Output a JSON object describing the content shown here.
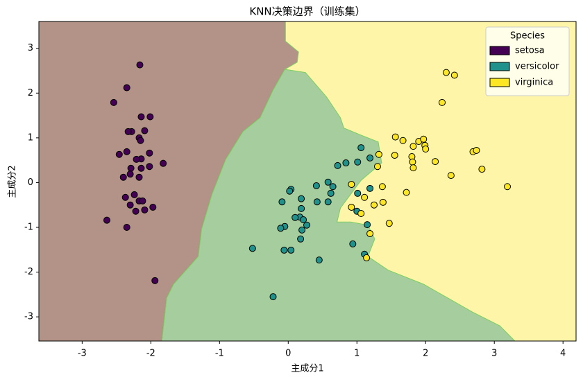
{
  "chart_data": {
    "type": "scatter",
    "title": "KNN决策边界（训练集）",
    "x_label": "主成分1",
    "y_label": "主成分2",
    "legend_title": "Species",
    "legend_position": "upper right",
    "xlim": [
      -3.63,
      4.19
    ],
    "ylim": [
      -3.54,
      3.6
    ],
    "xticks": [
      -3,
      -2,
      -1,
      0,
      1,
      2,
      3,
      4
    ],
    "yticks": [
      -3,
      -2,
      -1,
      0,
      1,
      2,
      3
    ],
    "series": [
      {
        "name": "setosa",
        "color": "#440154",
        "x": [
          -2.16,
          -2.35,
          -2.54,
          -2.14,
          -2.01,
          -2.28,
          -2.33,
          -2.09,
          -2.17,
          -2.15,
          -2.46,
          -2.35,
          -2.02,
          -2.14,
          -2.21,
          -1.82,
          -2.29,
          -2.14,
          -2.02,
          -2.3,
          -2.4,
          -2.17,
          -2.24,
          -2.37,
          -2.17,
          -2.12,
          -2.3,
          -2.22,
          -2.09,
          -1.97,
          -2.64,
          -2.35,
          -1.94
        ],
        "y": [
          2.63,
          2.12,
          1.79,
          1.47,
          1.47,
          1.14,
          1.14,
          1.16,
          1.0,
          0.94,
          0.63,
          0.69,
          0.66,
          0.53,
          0.52,
          0.43,
          0.32,
          0.32,
          0.36,
          0.19,
          0.12,
          0.12,
          -0.27,
          -0.33,
          -0.41,
          -0.41,
          -0.5,
          -0.64,
          -0.61,
          -0.55,
          -0.84,
          -1.0,
          -2.19
        ]
      },
      {
        "name": "versicolor",
        "color": "#21918c",
        "x": [
          1.06,
          1.01,
          1.19,
          0.84,
          0.72,
          0.58,
          0.04,
          0.02,
          0.41,
          0.65,
          0.62,
          0.19,
          -0.09,
          0.42,
          0.58,
          1.01,
          1.19,
          0.19,
          0.17,
          0.1,
          0.22,
          0.27,
          -0.05,
          -0.11,
          0.2,
          1.0,
          1.15,
          0.18,
          0.94,
          -0.52,
          -0.06,
          0.04,
          0.45,
          1.11,
          -0.22
        ],
        "y": [
          0.78,
          0.46,
          0.55,
          0.44,
          0.38,
          0.01,
          -0.15,
          -0.19,
          -0.07,
          -0.09,
          -0.24,
          -0.36,
          -0.43,
          -0.43,
          -0.43,
          -0.24,
          -0.13,
          -0.58,
          -0.77,
          -0.78,
          -0.83,
          -0.95,
          -0.98,
          -1.02,
          -1.06,
          -0.64,
          -0.94,
          -1.26,
          -1.37,
          -1.47,
          -1.51,
          -1.51,
          -1.73,
          -1.6,
          -2.55
        ]
      },
      {
        "name": "virginica",
        "color": "#fde725",
        "x": [
          2.3,
          2.42,
          2.24,
          1.56,
          1.67,
          1.9,
          1.97,
          1.82,
          1.99,
          2.0,
          1.32,
          1.55,
          1.8,
          1.81,
          1.82,
          2.14,
          1.3,
          2.69,
          2.74,
          2.82,
          2.37,
          3.19,
          0.92,
          1.37,
          1.72,
          1.11,
          1.38,
          1.25,
          0.92,
          1.06,
          1.47,
          1.19,
          1.14
        ],
        "y": [
          2.46,
          2.4,
          1.79,
          1.02,
          0.94,
          0.92,
          0.97,
          0.81,
          0.83,
          0.75,
          0.63,
          0.61,
          0.58,
          0.46,
          0.33,
          0.47,
          0.36,
          0.69,
          0.72,
          0.3,
          0.16,
          -0.09,
          -0.04,
          -0.09,
          -0.22,
          -0.33,
          -0.44,
          -0.5,
          -0.55,
          -0.69,
          -0.91,
          -1.14,
          -1.68
        ]
      }
    ],
    "regions": [
      {
        "series": 2,
        "x": [
          -3.63,
          4.19,
          4.19,
          -3.63
        ],
        "y": [
          3.6,
          3.6,
          -3.54,
          -3.54
        ]
      },
      {
        "series": 1,
        "x": [
          -0.05,
          -0.22,
          -0.41,
          -0.66,
          -0.91,
          -1.11,
          -1.26,
          -1.31,
          -1.67,
          -1.77,
          -1.84,
          3.3,
          3.08,
          2.68,
          1.97,
          1.46,
          1.16,
          1.26,
          1.16,
          0.91,
          0.71,
          0.76,
          0.91,
          1.06,
          1.36,
          1.31,
          1.06,
          0.81,
          0.76,
          0.56,
          0.25
        ],
        "y": [
          2.53,
          2.07,
          1.45,
          1.14,
          0.52,
          -0.26,
          -1.03,
          -1.65,
          -2.27,
          -2.58,
          -3.54,
          -3.54,
          -3.2,
          -2.89,
          -2.27,
          -1.96,
          -1.65,
          -1.26,
          -0.95,
          -0.88,
          -0.88,
          -0.57,
          -0.26,
          0.05,
          0.44,
          0.91,
          1.06,
          1.22,
          1.45,
          1.91,
          2.46
        ]
      },
      {
        "series": 0,
        "x": [
          -3.63,
          -0.04,
          -0.04,
          0.15,
          0.13,
          -0.05,
          -0.22,
          -0.41,
          -0.66,
          -0.91,
          -1.11,
          -1.26,
          -1.31,
          -1.67,
          -1.77,
          -1.84,
          -3.63
        ],
        "y": [
          3.6,
          3.6,
          3.16,
          2.92,
          2.69,
          2.53,
          2.07,
          1.45,
          1.14,
          0.52,
          -0.26,
          -1.03,
          -1.65,
          -2.27,
          -2.58,
          -3.54,
          -3.54
        ]
      }
    ]
  }
}
